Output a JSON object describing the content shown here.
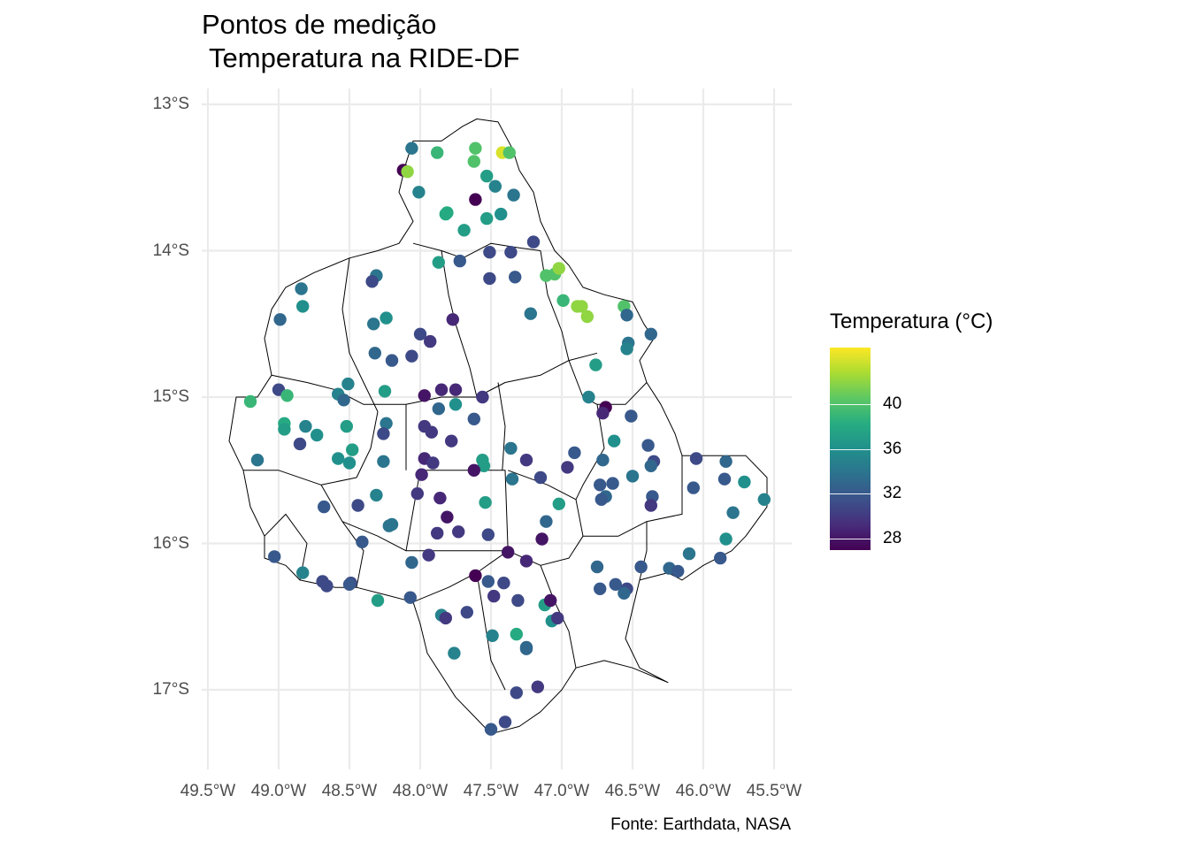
{
  "title_line1": "Pontos de medição",
  "title_line2": " Temperatura na RIDE-DF",
  "caption": "Fonte: Earthdata, NASA",
  "colors": {
    "grid": "#ebebeb",
    "boundary": "#000000",
    "viridis": [
      "#440154",
      "#472D7B",
      "#3B528B",
      "#2C728E",
      "#21908C",
      "#27AD81",
      "#5DC863",
      "#AADC32",
      "#FDE725"
    ]
  },
  "chart_data": {
    "type": "scatter",
    "xlim": [
      -49.5,
      -45.5
    ],
    "ylim": [
      -17.3,
      -13.1
    ],
    "x_ticks": [
      "49.5°W",
      "49.0°W",
      "48.5°W",
      "48.0°W",
      "47.5°W",
      "47.0°W",
      "46.5°W",
      "46.0°W",
      "45.5°W"
    ],
    "y_ticks": [
      "13°S",
      "14°S",
      "15°S",
      "16°S",
      "17°S"
    ],
    "legend": {
      "title": "Temperatura (°C)",
      "range": [
        27,
        45
      ],
      "ticks": [
        "28",
        "32",
        "36",
        "40"
      ],
      "placement": "right"
    },
    "points": [
      [
        -48.06,
        -13.3,
        34
      ],
      [
        -47.88,
        -13.33,
        39
      ],
      [
        -47.61,
        -13.3,
        40
      ],
      [
        -47.42,
        -13.33,
        44
      ],
      [
        -47.37,
        -13.33,
        40
      ],
      [
        -48.12,
        -13.45,
        27
      ],
      [
        -48.09,
        -13.46,
        42
      ],
      [
        -47.62,
        -13.39,
        40
      ],
      [
        -47.53,
        -13.49,
        37
      ],
      [
        -47.47,
        -13.56,
        35
      ],
      [
        -47.34,
        -13.62,
        34
      ],
      [
        -48.01,
        -13.6,
        35
      ],
      [
        -47.61,
        -13.65,
        27
      ],
      [
        -47.82,
        -13.75,
        38
      ],
      [
        -47.81,
        -13.74,
        38
      ],
      [
        -47.53,
        -13.78,
        37
      ],
      [
        -47.43,
        -13.75,
        36
      ],
      [
        -47.69,
        -13.86,
        37
      ],
      [
        -47.2,
        -13.94,
        31
      ],
      [
        -47.51,
        -14.01,
        31
      ],
      [
        -47.36,
        -14.01,
        31
      ],
      [
        -47.87,
        -14.08,
        37
      ],
      [
        -47.72,
        -14.07,
        32
      ],
      [
        -48.31,
        -14.17,
        34
      ],
      [
        -48.34,
        -14.21,
        31
      ],
      [
        -47.51,
        -14.19,
        31
      ],
      [
        -47.33,
        -14.18,
        32
      ],
      [
        -47.11,
        -14.17,
        40
      ],
      [
        -47.05,
        -14.16,
        40
      ],
      [
        -47.02,
        -14.12,
        42
      ],
      [
        -48.84,
        -14.26,
        34
      ],
      [
        -48.83,
        -14.38,
        36
      ],
      [
        -46.99,
        -14.34,
        39
      ],
      [
        -46.89,
        -14.38,
        42
      ],
      [
        -46.86,
        -14.38,
        42
      ],
      [
        -46.82,
        -14.45,
        42
      ],
      [
        -46.56,
        -14.38,
        40
      ],
      [
        -46.54,
        -14.44,
        33
      ],
      [
        -48.99,
        -14.47,
        33
      ],
      [
        -48.24,
        -14.46,
        36
      ],
      [
        -48.33,
        -14.5,
        34
      ],
      [
        -47.77,
        -14.47,
        29
      ],
      [
        -47.22,
        -14.43,
        34
      ],
      [
        -48.0,
        -14.57,
        31
      ],
      [
        -47.93,
        -14.62,
        30
      ],
      [
        -46.53,
        -14.63,
        34
      ],
      [
        -46.54,
        -14.67,
        35
      ],
      [
        -46.37,
        -14.57,
        33
      ],
      [
        -48.32,
        -14.7,
        33
      ],
      [
        -48.2,
        -14.75,
        32
      ],
      [
        -48.06,
        -14.72,
        31
      ],
      [
        -46.76,
        -14.78,
        37
      ],
      [
        -49.0,
        -14.95,
        31
      ],
      [
        -48.94,
        -14.99,
        39
      ],
      [
        -48.58,
        -14.98,
        35
      ],
      [
        -48.54,
        -15.02,
        33
      ],
      [
        -48.51,
        -14.91,
        35
      ],
      [
        -48.25,
        -14.96,
        37
      ],
      [
        -47.97,
        -14.99,
        28
      ],
      [
        -47.85,
        -14.95,
        29
      ],
      [
        -47.75,
        -14.95,
        29
      ],
      [
        -47.56,
        -15.0,
        30
      ],
      [
        -46.81,
        -15.0,
        35
      ],
      [
        -46.69,
        -15.07,
        27
      ],
      [
        -46.71,
        -15.11,
        29
      ],
      [
        -49.2,
        -15.03,
        39
      ],
      [
        -48.96,
        -15.18,
        38
      ],
      [
        -48.96,
        -15.22,
        37
      ],
      [
        -48.81,
        -15.2,
        35
      ],
      [
        -48.73,
        -15.26,
        36
      ],
      [
        -48.85,
        -15.32,
        31
      ],
      [
        -48.52,
        -15.2,
        37
      ],
      [
        -48.24,
        -15.18,
        34
      ],
      [
        -48.26,
        -15.25,
        31
      ],
      [
        -47.97,
        -15.2,
        30
      ],
      [
        -47.92,
        -15.24,
        30
      ],
      [
        -47.87,
        -15.08,
        33
      ],
      [
        -47.75,
        -15.05,
        36
      ],
      [
        -47.62,
        -15.15,
        32
      ],
      [
        -47.78,
        -15.3,
        30
      ],
      [
        -47.36,
        -15.35,
        34
      ],
      [
        -46.96,
        -15.48,
        30
      ],
      [
        -46.91,
        -15.38,
        32
      ],
      [
        -46.71,
        -15.43,
        33
      ],
      [
        -46.63,
        -15.3,
        36
      ],
      [
        -46.51,
        -15.13,
        32
      ],
      [
        -46.39,
        -15.33,
        32
      ],
      [
        -46.35,
        -15.44,
        31
      ],
      [
        -46.37,
        -15.47,
        33
      ],
      [
        -49.15,
        -15.43,
        34
      ],
      [
        -48.58,
        -15.42,
        36
      ],
      [
        -48.5,
        -15.45,
        36
      ],
      [
        -48.48,
        -15.36,
        37
      ],
      [
        -48.26,
        -15.44,
        34
      ],
      [
        -47.97,
        -15.42,
        29
      ],
      [
        -47.99,
        -15.53,
        29
      ],
      [
        -47.91,
        -15.45,
        30
      ],
      [
        -47.56,
        -15.43,
        37
      ],
      [
        -47.55,
        -15.47,
        37
      ],
      [
        -47.62,
        -15.5,
        28
      ],
      [
        -47.35,
        -15.56,
        34
      ],
      [
        -47.25,
        -15.43,
        30
      ],
      [
        -47.15,
        -15.55,
        31
      ],
      [
        -46.73,
        -15.6,
        32
      ],
      [
        -46.64,
        -15.59,
        32
      ],
      [
        -46.69,
        -15.68,
        33
      ],
      [
        -46.72,
        -15.7,
        32
      ],
      [
        -46.5,
        -15.54,
        34
      ],
      [
        -46.36,
        -15.68,
        32
      ],
      [
        -46.37,
        -15.74,
        30
      ],
      [
        -48.68,
        -15.75,
        32
      ],
      [
        -48.44,
        -15.74,
        31
      ],
      [
        -48.31,
        -15.67,
        35
      ],
      [
        -48.2,
        -15.87,
        34
      ],
      [
        -48.22,
        -15.88,
        34
      ],
      [
        -48.02,
        -15.66,
        30
      ],
      [
        -47.86,
        -15.69,
        29
      ],
      [
        -47.81,
        -15.82,
        28
      ],
      [
        -47.88,
        -15.93,
        30
      ],
      [
        -47.73,
        -15.92,
        30
      ],
      [
        -47.52,
        -15.94,
        31
      ],
      [
        -47.54,
        -15.72,
        37
      ],
      [
        -47.02,
        -15.73,
        37
      ],
      [
        -47.11,
        -15.85,
        33
      ],
      [
        -47.14,
        -15.97,
        28
      ],
      [
        -49.03,
        -16.09,
        32
      ],
      [
        -48.83,
        -16.2,
        35
      ],
      [
        -48.69,
        -16.26,
        31
      ],
      [
        -48.66,
        -16.29,
        31
      ],
      [
        -48.49,
        -16.27,
        31
      ],
      [
        -48.5,
        -16.28,
        32
      ],
      [
        -48.41,
        -15.99,
        32
      ],
      [
        -48.06,
        -16.13,
        33
      ],
      [
        -47.94,
        -16.08,
        30
      ],
      [
        -47.61,
        -16.22,
        27
      ],
      [
        -47.52,
        -16.26,
        32
      ],
      [
        -47.38,
        -16.06,
        28
      ],
      [
        -47.25,
        -16.12,
        29
      ],
      [
        -46.75,
        -16.16,
        33
      ],
      [
        -46.73,
        -16.31,
        32
      ],
      [
        -46.62,
        -16.28,
        32
      ],
      [
        -46.54,
        -16.31,
        31
      ],
      [
        -46.56,
        -16.34,
        33
      ],
      [
        -46.44,
        -16.16,
        32
      ],
      [
        -46.24,
        -16.17,
        33
      ],
      [
        -46.18,
        -16.19,
        32
      ],
      [
        -46.1,
        -16.07,
        34
      ],
      [
        -45.88,
        -16.1,
        32
      ],
      [
        -45.84,
        -15.97,
        36
      ],
      [
        -45.79,
        -15.79,
        34
      ],
      [
        -45.84,
        -15.44,
        33
      ],
      [
        -45.85,
        -15.56,
        32
      ],
      [
        -45.71,
        -15.58,
        36
      ],
      [
        -45.57,
        -15.7,
        35
      ],
      [
        -46.05,
        -15.42,
        31
      ],
      [
        -46.07,
        -15.62,
        32
      ],
      [
        -48.3,
        -16.39,
        37
      ],
      [
        -48.07,
        -16.37,
        32
      ],
      [
        -47.85,
        -16.49,
        35
      ],
      [
        -47.82,
        -16.51,
        30
      ],
      [
        -47.76,
        -16.75,
        35
      ],
      [
        -47.48,
        -16.36,
        30
      ],
      [
        -47.41,
        -16.27,
        31
      ],
      [
        -47.49,
        -16.63,
        35
      ],
      [
        -47.31,
        -16.39,
        31
      ],
      [
        -47.32,
        -16.62,
        38
      ],
      [
        -47.25,
        -16.71,
        33
      ],
      [
        -47.12,
        -16.42,
        37
      ],
      [
        -47.08,
        -16.39,
        28
      ],
      [
        -47.07,
        -16.53,
        36
      ],
      [
        -47.03,
        -16.51,
        30
      ],
      [
        -47.25,
        -16.72,
        33
      ],
      [
        -47.32,
        -17.02,
        31
      ],
      [
        -47.17,
        -16.98,
        30
      ],
      [
        -47.5,
        -17.27,
        32
      ],
      [
        -47.4,
        -17.22,
        31
      ],
      [
        -47.67,
        -16.47,
        31
      ]
    ]
  }
}
